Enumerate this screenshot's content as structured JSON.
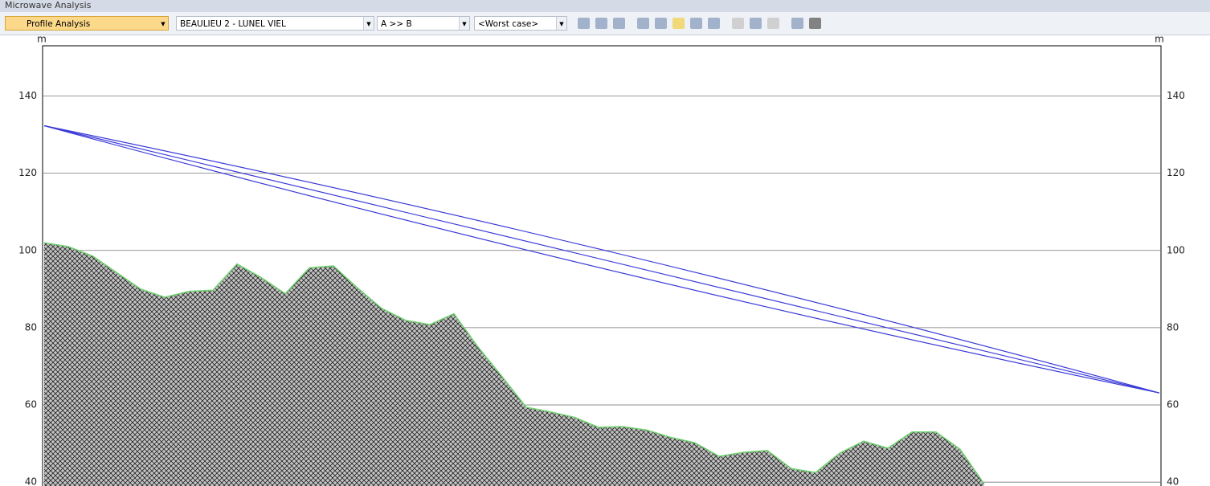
{
  "window_title": "Microwave Analysis",
  "toolbar": {
    "mode": "Profile Analysis",
    "link": "BEAULIEU 2 - LUNEL VIEL",
    "direction": "A >> B",
    "case": "<Worst case>"
  },
  "chart_data": {
    "type": "area",
    "left_axis_label": "m",
    "right_axis_label": "m",
    "ylim": [
      39,
      153
    ],
    "yticks": [
      40,
      60,
      80,
      100,
      120,
      140
    ],
    "grid": true,
    "terrain": {
      "color": "#6fd46f",
      "values": [
        102,
        101,
        98.6,
        94.3,
        90,
        87.9,
        89.4,
        89.7,
        96.5,
        93,
        88.8,
        95.5,
        96,
        90.3,
        85,
        81.9,
        80.8,
        83.6,
        75,
        67.3,
        59.4,
        58.2,
        56.8,
        54.2,
        54.4,
        53.5,
        51.6,
        50.2,
        46.7,
        47.7,
        48.2,
        43.5,
        42.5,
        47.5,
        50.6,
        48.8,
        53,
        53,
        48.5,
        39.5
      ]
    },
    "link_lines": [
      {
        "color": "#3a3ad8",
        "values": [
          132.3,
          100.2,
          63.1
        ]
      },
      {
        "color": "#3a3ad8",
        "values": [
          132.3,
          97.9,
          63.1
        ]
      },
      {
        "color": "#3a3ad8",
        "values": [
          132.3,
          95.4,
          63.1
        ]
      }
    ]
  }
}
